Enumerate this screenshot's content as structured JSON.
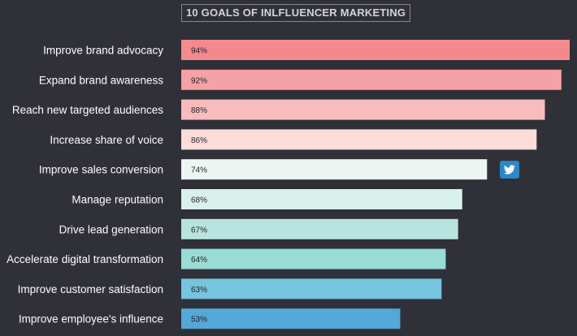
{
  "chart_data": {
    "type": "bar",
    "orientation": "horizontal",
    "title": "10 GOALS OF INLFLUENCER MARKETING",
    "categories": [
      "Improve brand advocacy",
      "Expand brand awareness",
      "Reach new targeted audiences",
      "Increase share of voice",
      "Improve sales conversion",
      "Manage reputation",
      "Drive lead generation",
      "Accelerate digital transformation",
      "Improve customer satisfaction",
      "Improve employee's influence"
    ],
    "values": [
      94,
      92,
      88,
      86,
      74,
      68,
      67,
      64,
      63,
      53
    ],
    "value_labels": [
      "94%",
      "92%",
      "88%",
      "86%",
      "74%",
      "68%",
      "67%",
      "64%",
      "63%",
      "53%"
    ],
    "colors": [
      "#f48a8d",
      "#f6a1a3",
      "#f8bcbc",
      "#fbdcd8",
      "#eef6f3",
      "#d9f1ec",
      "#b8e4e0",
      "#99dcd6",
      "#75c5dc",
      "#55a7d7"
    ],
    "unit": "%",
    "grid": false,
    "legend": "none"
  },
  "share_button": {
    "icon": "twitter-icon",
    "color": "#2f86c8"
  }
}
